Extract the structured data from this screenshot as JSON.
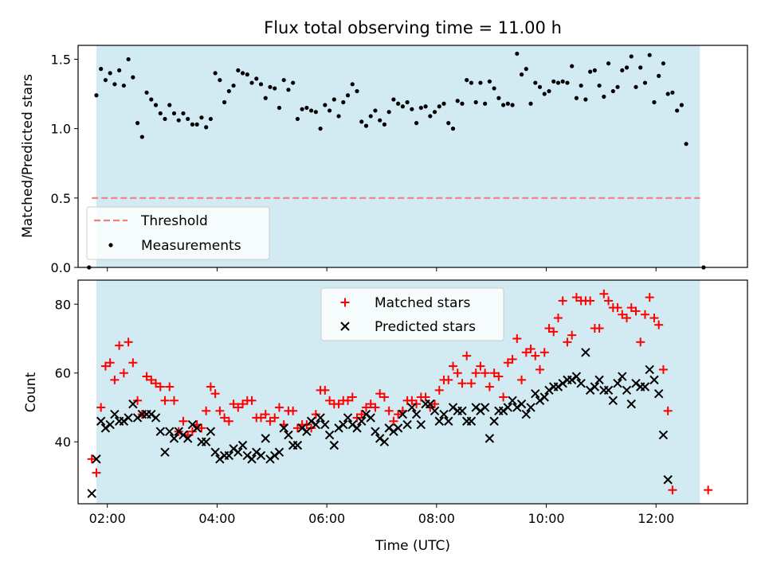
{
  "chart_data": [
    {
      "type": "scatter",
      "title": "Flux total observing time = 11.00 h",
      "ylabel": "Matched/Predicted stars",
      "xlabel": "",
      "xlim": [
        "01:28",
        "13:40"
      ],
      "ylim": [
        0,
        1.6
      ],
      "y_ticks": [
        "0.0",
        "0.5",
        "1.0",
        "1.5"
      ],
      "x_ticks": [
        "02:00",
        "04:00",
        "06:00",
        "08:00",
        "10:00",
        "12:00"
      ],
      "x_ticklabels_visible": false,
      "observing_window": [
        "01:48",
        "12:48"
      ],
      "grid": false,
      "legend_position": "lower-left",
      "series": [
        {
          "name": "Threshold",
          "style": "dashed-line",
          "color": "#f08080",
          "x": [
            "01:43",
            "12:48"
          ],
          "y": [
            0.5,
            0.5
          ]
        },
        {
          "name": "Measurements",
          "style": "dot",
          "color": "#000000",
          "y": [
            1.24,
            1.43,
            1.35,
            1.4,
            1.32,
            1.42,
            1.31,
            1.5,
            1.37,
            1.04,
            0.94,
            1.26,
            1.21,
            1.17,
            1.11,
            1.07,
            1.17,
            1.11,
            1.06,
            1.11,
            1.07,
            1.03,
            1.03,
            1.08,
            1.01,
            1.07,
            1.4,
            1.35,
            1.19,
            1.27,
            1.31,
            1.42,
            1.4,
            1.39,
            1.33,
            1.36,
            1.32,
            1.22,
            1.3,
            1.29,
            1.15,
            1.35,
            1.28,
            1.33,
            1.07,
            1.14,
            1.15,
            1.13,
            1.12,
            1.0,
            1.17,
            1.13,
            1.21,
            1.09,
            1.19,
            1.24,
            1.32,
            1.27,
            1.05,
            1.02,
            1.09,
            1.13,
            1.06,
            1.03,
            1.12,
            1.21,
            1.18,
            1.16,
            1.19,
            1.14,
            1.04,
            1.15,
            1.16,
            1.09,
            1.12,
            1.16,
            1.18,
            1.04,
            1.0,
            1.2,
            1.18,
            1.35,
            1.33,
            1.19,
            1.33,
            1.18,
            1.34,
            1.29,
            1.22,
            1.17,
            1.18,
            1.17,
            1.54,
            1.39,
            1.43,
            1.18,
            1.33,
            1.3,
            1.25,
            1.27,
            1.34,
            1.33,
            1.34,
            1.33,
            1.45,
            1.22,
            1.31,
            1.21,
            1.41,
            1.42,
            1.31,
            1.23,
            1.47,
            1.27,
            1.3,
            1.42,
            1.44,
            1.52,
            1.3,
            1.44,
            1.33,
            1.53,
            1.19,
            1.38,
            1.47,
            1.25,
            1.26,
            1.13,
            1.17,
            0.89
          ],
          "x_start": "01:48",
          "x_step_minutes": 5,
          "edge_points": [
            {
              "x": "01:40",
              "y": 0.0
            },
            {
              "x": "12:52",
              "y": 0.0
            }
          ]
        }
      ]
    },
    {
      "type": "scatter",
      "title": "",
      "xlabel": "Time (UTC)",
      "ylabel": "Count",
      "xlim": [
        "01:28",
        "13:40"
      ],
      "ylim": [
        22,
        87
      ],
      "y_ticks": [
        "40",
        "60",
        "80"
      ],
      "x_ticks": [
        "02:00",
        "04:00",
        "06:00",
        "08:00",
        "10:00",
        "12:00"
      ],
      "observing_window": [
        "01:48",
        "12:48"
      ],
      "grid": false,
      "legend_position": "top-center",
      "x_start": "01:48",
      "x_step_minutes": 5,
      "series": [
        {
          "name": "Matched stars",
          "marker": "plus",
          "color": "#ff0000",
          "values": [
            31,
            50,
            62,
            63,
            58,
            68,
            60,
            69,
            63,
            52,
            48,
            59,
            58,
            57,
            56,
            52,
            56,
            52,
            43,
            46,
            42,
            43,
            45,
            44,
            49,
            56,
            54,
            49,
            47,
            46,
            51,
            50,
            51,
            52,
            52,
            47,
            47,
            48,
            46,
            47,
            50,
            45,
            49,
            49,
            44,
            45,
            45,
            44,
            48,
            55,
            55,
            52,
            51,
            51,
            52,
            52,
            53,
            47,
            48,
            50,
            51,
            50,
            54,
            53,
            49,
            46,
            48,
            49,
            52,
            52,
            51,
            53,
            53,
            50,
            51,
            55,
            58,
            58,
            62,
            60,
            57,
            65,
            57,
            60,
            62,
            60,
            56,
            60,
            59,
            53,
            63,
            64,
            70,
            58,
            66,
            67,
            65,
            61,
            66,
            73,
            72,
            76,
            81,
            69,
            71,
            82,
            81,
            81,
            81,
            73,
            73,
            83,
            81,
            79,
            79,
            77,
            76,
            79,
            78,
            69,
            77,
            82,
            76,
            74,
            61,
            49,
            26
          ],
          "edge_points": [
            {
              "x": "01:43",
              "y": 35
            },
            {
              "x": "12:57",
              "y": 26
            }
          ]
        },
        {
          "name": "Predicted stars",
          "marker": "x",
          "color": "#000000",
          "values": [
            35,
            46,
            44,
            45,
            48,
            46,
            46,
            47,
            51,
            47,
            48,
            48,
            48,
            47,
            43,
            37,
            43,
            41,
            43,
            42,
            41,
            45,
            44,
            40,
            40,
            43,
            37,
            35,
            36,
            36,
            38,
            37,
            39,
            36,
            35,
            37,
            36,
            41,
            35,
            36,
            37,
            44,
            42,
            39,
            39,
            44,
            43,
            46,
            45,
            47,
            45,
            42,
            39,
            44,
            45,
            47,
            45,
            44,
            46,
            48,
            47,
            43,
            41,
            40,
            44,
            43,
            44,
            48,
            45,
            50,
            48,
            45,
            51,
            51,
            49,
            46,
            48,
            46,
            50,
            49,
            49,
            46,
            46,
            50,
            49,
            50,
            41,
            46,
            49,
            49,
            50,
            52,
            50,
            51,
            48,
            50,
            54,
            52,
            53,
            55,
            56,
            56,
            57,
            58,
            58,
            59,
            57,
            66,
            55,
            56,
            58,
            55,
            55,
            52,
            57,
            59,
            55,
            51,
            57,
            56,
            56,
            61,
            58,
            54,
            42,
            29
          ],
          "edge_points": [
            {
              "x": "01:43",
              "y": 25
            }
          ]
        }
      ]
    }
  ]
}
